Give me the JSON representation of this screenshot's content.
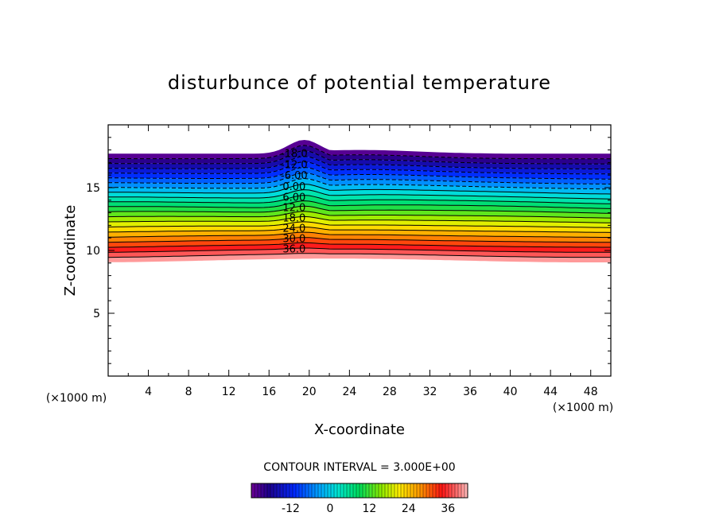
{
  "chart_data": {
    "type": "heatmap",
    "title": "disturbunce of potential temperature",
    "xlabel": "X-coordinate",
    "ylabel": "Z-coordinate",
    "x_unit": "(×1000 m)",
    "y_unit": "(×1000 m)",
    "xlim": [
      0,
      50
    ],
    "ylim": [
      0,
      20
    ],
    "x_ticks": [
      4,
      8,
      12,
      16,
      20,
      24,
      28,
      32,
      36,
      40,
      44,
      48
    ],
    "y_ticks": [
      5,
      10,
      15
    ],
    "contour_interval_text": "CONTOUR INTERVAL = 3.000E+00",
    "contour_interval": 3,
    "contour_labels": [
      "-18.0",
      "-12.0",
      "-6.00",
      "0.00",
      "6.00",
      "12.0",
      "18.0",
      "24.0",
      "30.0",
      "36.0"
    ],
    "colorbar": {
      "range": [
        -24,
        42
      ],
      "tick_labels": [
        "-12",
        "0",
        "12",
        "24",
        "36"
      ]
    },
    "field": {
      "description_values": "disturbance field filled between z≈9 and z≈17.7 (×1000 m), decreasing from about +42 at bottom to about -24 at top",
      "bottom_z": 9.2,
      "top_z": 17.7,
      "peak_top": {
        "x": 19.5,
        "z": 18.8
      }
    }
  },
  "colors": {
    "background": "#ffffff",
    "frame": "#000000"
  }
}
